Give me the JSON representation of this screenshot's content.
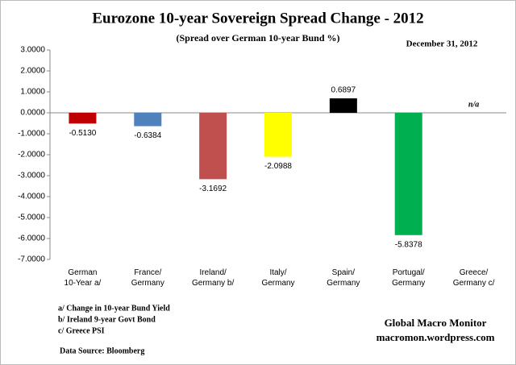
{
  "chart_data": {
    "type": "bar",
    "title": "Eurozone 10-year Sovereign Spread Change - 2012",
    "subtitle": "(Spread over German 10-year Bund %)",
    "date": "December 31,  2012",
    "categories": [
      "German\n10-Year a/",
      "France/\nGermany",
      "Ireland/\nGermany b/",
      "Italy/\nGermany",
      "Spain/\nGermany",
      "Portugal/\nGermany",
      "Greece/\nGermany c/"
    ],
    "values": [
      -0.513,
      -0.6384,
      -3.1692,
      -2.0988,
      0.6897,
      -5.8378,
      null
    ],
    "value_labels": [
      "-0.5130",
      "-0.6384",
      "-3.1692",
      "-2.0988",
      "0.6897",
      "-5.8378",
      "n/a"
    ],
    "colors": [
      "#c00000",
      "#4f81bd",
      "#c0504d",
      "#ffff00",
      "#000000",
      "#00b050",
      "#7f7f7f"
    ],
    "ylim": [
      -7,
      3
    ],
    "yticks": [
      {
        "value": 3,
        "label": "3.0000"
      },
      {
        "value": 2,
        "label": "2.0000"
      },
      {
        "value": 1,
        "label": "1.0000"
      },
      {
        "value": 0,
        "label": "0.0000"
      },
      {
        "value": -1,
        "label": "-1.0000"
      },
      {
        "value": -2,
        "label": "-2.0000"
      },
      {
        "value": -3,
        "label": "-3.0000"
      },
      {
        "value": -4,
        "label": "-4.0000"
      },
      {
        "value": -5,
        "label": "-5.0000"
      },
      {
        "value": -6,
        "label": "-6.0000"
      },
      {
        "value": -7,
        "label": "-7.0000"
      }
    ],
    "grid": false,
    "footnotes": [
      "a/ Change in 10-year Bund Yield",
      "b/ Ireland 9-year Govt Bond",
      "c/ Greece PSI"
    ],
    "source": "Data Source:  Bloomberg",
    "credit": [
      "Global Macro Monitor",
      "macromon.wordpress.com"
    ]
  }
}
